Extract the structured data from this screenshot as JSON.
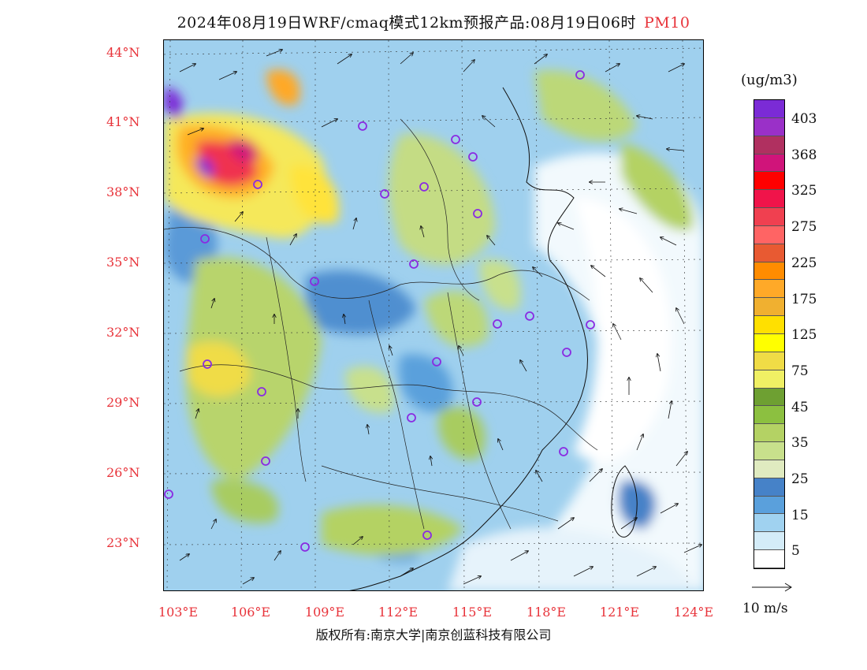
{
  "title": {
    "main": "2024年08月19日WRF/cmaq模式12km预报产品:08月19日06时",
    "pollutant": "PM10"
  },
  "lat_labels": [
    "44°N",
    "41°N",
    "38°N",
    "35°N",
    "32°N",
    "29°N",
    "26°N",
    "23°N"
  ],
  "lon_labels": [
    "103°E",
    "106°E",
    "109°E",
    "112°E",
    "115°E",
    "118°E",
    "121°E",
    "124°E"
  ],
  "legend": {
    "unit": "(ug/m3)",
    "labels": [
      "403",
      "368",
      "325",
      "275",
      "225",
      "175",
      "125",
      "75",
      "45",
      "35",
      "25",
      "15",
      "5"
    ],
    "colors": [
      "#7b2bd6",
      "#9a30c8",
      "#b03060",
      "#d0147a",
      "#ff0000",
      "#f0144a",
      "#f04050",
      "#ff6464",
      "#e85a32",
      "#ff8c00",
      "#ffa928",
      "#f0b030",
      "#ffe000",
      "#ffff00",
      "#f0dc46",
      "#f0f064",
      "#6ea032",
      "#8cc040",
      "#b4d264",
      "#c8e08c",
      "#e0ebc0",
      "#4682c8",
      "#5aa0dc",
      "#a0d2f0",
      "#d4ecf8",
      "#ffffff"
    ]
  },
  "wind_reference": {
    "label": "10 m/s"
  },
  "copyright": "版权所有:南京大学|南京创蓝科技有限公司"
}
